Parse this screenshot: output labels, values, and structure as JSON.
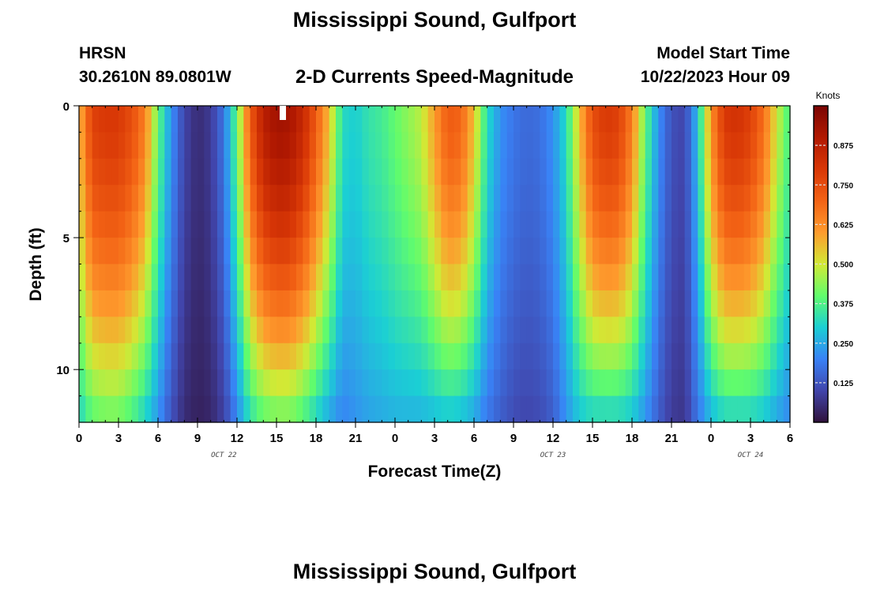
{
  "header": {
    "title": "Mississippi Sound, Gulfport",
    "station_id": "HRSN",
    "coords": "30.2610N  89.0801W",
    "chart_title": "2-D Currents Speed-Magnitude",
    "model_start_label": "Model Start Time",
    "model_start_time": "10/22/2023 Hour 09"
  },
  "footer": {
    "repeat_title": "Mississippi Sound, Gulfport"
  },
  "chart_data": {
    "type": "heatmap",
    "title": "2-D Currents Speed-Magnitude",
    "xlabel": "Forecast Time(Z)",
    "ylabel": "Depth (ft)",
    "x_range_hours": [
      0,
      54
    ],
    "x_tick_labels": [
      "0",
      "3",
      "6",
      "9",
      "12",
      "15",
      "18",
      "21",
      "0",
      "3",
      "6",
      "9",
      "12",
      "15",
      "18",
      "21",
      "0",
      "3",
      "6"
    ],
    "date_labels": [
      {
        "text": "OCT 22",
        "hour": 11
      },
      {
        "text": "OCT 23",
        "hour": 36
      },
      {
        "text": "OCT 24",
        "hour": 51
      }
    ],
    "y_range_ft": [
      0,
      12
    ],
    "y_tick_labels": [
      "0",
      "5",
      "10"
    ],
    "y_tick_values": [
      0,
      5,
      10
    ],
    "colorbar": {
      "unit": "Knots",
      "range": [
        0,
        1.0
      ],
      "tick_values": [
        0.125,
        0.25,
        0.375,
        0.5,
        0.625,
        0.75,
        0.875
      ],
      "tick_labels": [
        "0.125",
        "0.250",
        "0.375",
        "0.500",
        "0.625",
        "0.750",
        "0.875"
      ]
    },
    "speed_profile": {
      "description_hours": [
        0,
        1,
        2,
        3,
        4,
        5,
        6,
        7,
        8,
        9,
        10,
        11,
        12,
        13,
        14,
        15,
        16,
        17,
        18,
        19,
        20,
        21,
        22,
        23,
        24,
        25,
        26,
        27,
        28,
        29,
        30,
        31,
        32,
        33,
        34,
        35,
        36,
        37,
        38,
        39,
        40,
        41,
        42,
        43,
        44,
        45,
        46,
        47,
        48,
        49,
        50,
        51,
        52,
        53,
        54
      ],
      "surface_knots": [
        0.55,
        0.78,
        0.8,
        0.8,
        0.75,
        0.65,
        0.4,
        0.22,
        0.1,
        0.05,
        0.08,
        0.18,
        0.4,
        0.72,
        0.88,
        0.93,
        0.92,
        0.85,
        0.72,
        0.55,
        0.32,
        0.3,
        0.34,
        0.36,
        0.4,
        0.44,
        0.48,
        0.6,
        0.72,
        0.7,
        0.55,
        0.32,
        0.22,
        0.18,
        0.16,
        0.17,
        0.22,
        0.32,
        0.55,
        0.75,
        0.8,
        0.78,
        0.65,
        0.4,
        0.22,
        0.12,
        0.1,
        0.28,
        0.62,
        0.8,
        0.82,
        0.78,
        0.68,
        0.5,
        0.36
      ],
      "bottom_knots": [
        0.3,
        0.38,
        0.4,
        0.4,
        0.36,
        0.3,
        0.22,
        0.12,
        0.05,
        0.03,
        0.04,
        0.09,
        0.2,
        0.32,
        0.38,
        0.4,
        0.4,
        0.36,
        0.3,
        0.24,
        0.2,
        0.22,
        0.24,
        0.25,
        0.26,
        0.26,
        0.26,
        0.27,
        0.28,
        0.27,
        0.24,
        0.18,
        0.14,
        0.11,
        0.1,
        0.11,
        0.14,
        0.22,
        0.28,
        0.3,
        0.3,
        0.3,
        0.28,
        0.22,
        0.14,
        0.08,
        0.07,
        0.18,
        0.26,
        0.3,
        0.3,
        0.3,
        0.28,
        0.24,
        0.2
      ]
    }
  }
}
